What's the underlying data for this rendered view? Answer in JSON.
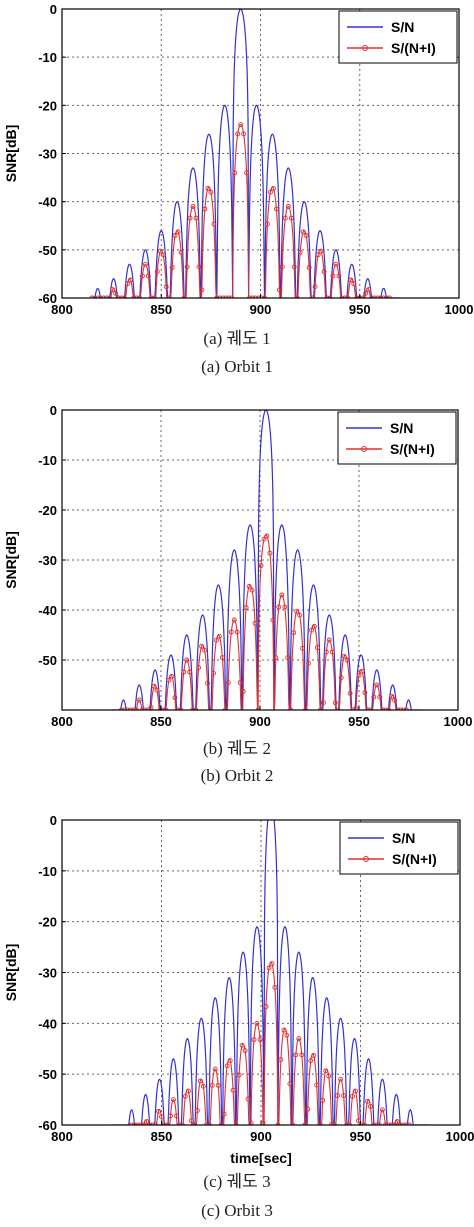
{
  "colors": {
    "sn": "#3333cc",
    "sni": "#e03030",
    "grid": "#666666",
    "axis": "#000000"
  },
  "chart_data": [
    {
      "type": "line",
      "panel_label": "(a)",
      "caption_kr": "(a)  궤도 1",
      "caption_en": "(a)  Orbit 1",
      "ylabel": "SNR[dB]",
      "xlabel": "",
      "xlim": [
        800,
        1000
      ],
      "ylim": [
        -60,
        0
      ],
      "xticks": [
        800,
        850,
        900,
        950,
        1000
      ],
      "yticks": [
        0,
        -10,
        -20,
        -30,
        -40,
        -50,
        -60
      ],
      "grid": true,
      "legend_position": "top-right",
      "legend": [
        "S/N",
        "S/(N+I)"
      ],
      "series": [
        {
          "name": "S/N",
          "center": 890,
          "peak_db": 0,
          "lobe_spacing_sec": 8,
          "support": [
            815,
            970
          ],
          "sidelobe_peaks": [
            {
              "x": 882,
              "y": -20
            },
            {
              "x": 898,
              "y": -20
            },
            {
              "x": 874,
              "y": -26
            },
            {
              "x": 906,
              "y": -26
            },
            {
              "x": 866,
              "y": -33
            },
            {
              "x": 914,
              "y": -33
            },
            {
              "x": 858,
              "y": -40
            },
            {
              "x": 922,
              "y": -40
            },
            {
              "x": 850,
              "y": -46
            },
            {
              "x": 930,
              "y": -46
            },
            {
              "x": 842,
              "y": -50
            },
            {
              "x": 938,
              "y": -50
            },
            {
              "x": 834,
              "y": -53
            },
            {
              "x": 946,
              "y": -53
            },
            {
              "x": 826,
              "y": -56
            },
            {
              "x": 954,
              "y": -56
            },
            {
              "x": 818,
              "y": -58
            },
            {
              "x": 962,
              "y": -58
            }
          ]
        },
        {
          "name": "S/(N+I)",
          "center": 890,
          "peak_db": -24,
          "lobe_spacing_sec": 8,
          "support": [
            815,
            965
          ],
          "sidelobe_peaks": [
            {
              "x": 874,
              "y": -37
            },
            {
              "x": 906,
              "y": -37
            },
            {
              "x": 866,
              "y": -41
            },
            {
              "x": 914,
              "y": -41
            },
            {
              "x": 858,
              "y": -46
            },
            {
              "x": 922,
              "y": -46
            },
            {
              "x": 850,
              "y": -50
            },
            {
              "x": 930,
              "y": -50
            },
            {
              "x": 842,
              "y": -53
            },
            {
              "x": 938,
              "y": -53
            },
            {
              "x": 834,
              "y": -56
            },
            {
              "x": 946,
              "y": -56
            },
            {
              "x": 826,
              "y": -58
            },
            {
              "x": 954,
              "y": -58
            }
          ]
        }
      ]
    },
    {
      "type": "line",
      "panel_label": "(b)",
      "caption_kr": "(b)  궤도 2",
      "caption_en": "(b)  Orbit 2",
      "ylabel": "SNR[dB]",
      "xlabel": "",
      "xlim": [
        800,
        1000
      ],
      "ylim": [
        -60,
        0
      ],
      "xticks": [
        800,
        850,
        900,
        950,
        1000
      ],
      "yticks": [
        0,
        -10,
        -20,
        -30,
        -40,
        -50
      ],
      "grid": true,
      "legend_position": "top-right",
      "legend": [
        "S/N",
        "S/(N+I)"
      ],
      "series": [
        {
          "name": "S/N",
          "center": 903,
          "peak_db": 0,
          "lobe_spacing_sec": 8,
          "support": [
            825,
            982
          ],
          "sidelobe_peaks": [
            {
              "x": 895,
              "y": -23
            },
            {
              "x": 911,
              "y": -23
            },
            {
              "x": 887,
              "y": -28
            },
            {
              "x": 919,
              "y": -28
            },
            {
              "x": 879,
              "y": -35
            },
            {
              "x": 927,
              "y": -35
            },
            {
              "x": 871,
              "y": -41
            },
            {
              "x": 935,
              "y": -41
            },
            {
              "x": 863,
              "y": -45
            },
            {
              "x": 943,
              "y": -45
            },
            {
              "x": 855,
              "y": -49
            },
            {
              "x": 951,
              "y": -49
            },
            {
              "x": 847,
              "y": -52
            },
            {
              "x": 959,
              "y": -52
            },
            {
              "x": 839,
              "y": -55
            },
            {
              "x": 967,
              "y": -55
            },
            {
              "x": 831,
              "y": -58
            },
            {
              "x": 975,
              "y": -58
            }
          ]
        },
        {
          "name": "S/(N+I)",
          "center": 903,
          "peak_db": -25,
          "lobe_spacing_sec": 8,
          "support": [
            830,
            975
          ],
          "sidelobe_peaks": [
            {
              "x": 895,
              "y": -35
            },
            {
              "x": 911,
              "y": -37
            },
            {
              "x": 887,
              "y": -42
            },
            {
              "x": 919,
              "y": -40
            },
            {
              "x": 879,
              "y": -45
            },
            {
              "x": 927,
              "y": -43
            },
            {
              "x": 871,
              "y": -47
            },
            {
              "x": 935,
              "y": -46
            },
            {
              "x": 863,
              "y": -50
            },
            {
              "x": 943,
              "y": -49
            },
            {
              "x": 855,
              "y": -53
            },
            {
              "x": 951,
              "y": -52
            },
            {
              "x": 847,
              "y": -55
            },
            {
              "x": 959,
              "y": -55
            },
            {
              "x": 839,
              "y": -58
            },
            {
              "x": 967,
              "y": -57
            }
          ]
        }
      ]
    },
    {
      "type": "line",
      "panel_label": "(c)",
      "caption_kr": "(c)  궤도 3",
      "caption_en": "(c)  Orbit 3",
      "ylabel": "SNR[dB]",
      "xlabel": "time[sec]",
      "xlim": [
        800,
        1000
      ],
      "ylim": [
        -60,
        0
      ],
      "xticks": [
        800,
        850,
        900,
        950,
        1000
      ],
      "yticks": [
        0,
        -10,
        -20,
        -30,
        -40,
        -50,
        -60
      ],
      "grid": true,
      "legend_position": "top-right",
      "legend": [
        "S/N",
        "S/(N+I)"
      ],
      "series": [
        {
          "name": "S/N",
          "center": 905,
          "peak_db": 3,
          "lobe_spacing_sec": 7,
          "support": [
            825,
            985
          ],
          "sidelobe_peaks": [
            {
              "x": 898,
              "y": -21
            },
            {
              "x": 912,
              "y": -21
            },
            {
              "x": 891,
              "y": -26
            },
            {
              "x": 919,
              "y": -26
            },
            {
              "x": 884,
              "y": -31
            },
            {
              "x": 926,
              "y": -31
            },
            {
              "x": 877,
              "y": -35
            },
            {
              "x": 933,
              "y": -35
            },
            {
              "x": 870,
              "y": -39
            },
            {
              "x": 940,
              "y": -39
            },
            {
              "x": 863,
              "y": -43
            },
            {
              "x": 947,
              "y": -43
            },
            {
              "x": 856,
              "y": -47
            },
            {
              "x": 954,
              "y": -47
            },
            {
              "x": 849,
              "y": -51
            },
            {
              "x": 961,
              "y": -51
            },
            {
              "x": 842,
              "y": -54
            },
            {
              "x": 968,
              "y": -54
            },
            {
              "x": 835,
              "y": -57
            },
            {
              "x": 975,
              "y": -57
            }
          ]
        },
        {
          "name": "S/(N+I)",
          "center": 905,
          "peak_db": -28,
          "lobe_spacing_sec": 7,
          "support": [
            835,
            975
          ],
          "sidelobe_peaks": [
            {
              "x": 898,
              "y": -40
            },
            {
              "x": 912,
              "y": -41
            },
            {
              "x": 891,
              "y": -44
            },
            {
              "x": 919,
              "y": -43
            },
            {
              "x": 884,
              "y": -47
            },
            {
              "x": 926,
              "y": -46
            },
            {
              "x": 877,
              "y": -49
            },
            {
              "x": 933,
              "y": -49
            },
            {
              "x": 870,
              "y": -51
            },
            {
              "x": 940,
              "y": -51
            },
            {
              "x": 863,
              "y": -53
            },
            {
              "x": 947,
              "y": -53
            },
            {
              "x": 856,
              "y": -55
            },
            {
              "x": 954,
              "y": -55
            },
            {
              "x": 849,
              "y": -57
            },
            {
              "x": 961,
              "y": -57
            },
            {
              "x": 842,
              "y": -59
            },
            {
              "x": 968,
              "y": -59
            }
          ]
        }
      ]
    }
  ]
}
